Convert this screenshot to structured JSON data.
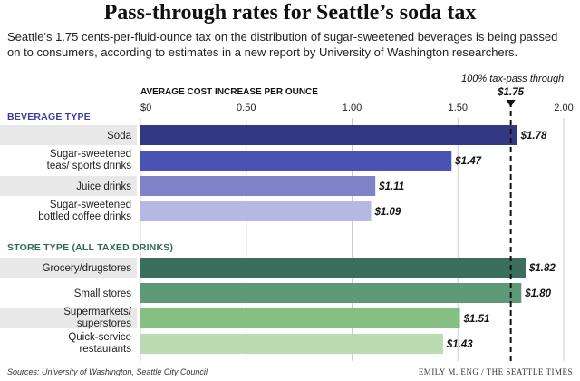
{
  "title": "Pass-through rates for Seattle’s soda tax",
  "subtitle": "Seattle's 1.75 cents-per-fluid-ounce tax on the distribution of sugar-sweetened beverages is being passed on to consumers, according to estimates in a new report by University of Washington researchers.",
  "sources": "Sources: University of Washington, Seattle City Council",
  "byline": "EMILY M. ENG / THE SEATTLE TIMES",
  "chart_data": {
    "type": "bar",
    "orientation": "horizontal",
    "axis_title": "AVERAGE COST INCREASE PER OUNCE",
    "xlim": [
      0,
      2.0
    ],
    "ticks": [
      {
        "value": 0,
        "label": "$0"
      },
      {
        "value": 0.5,
        "label": "0.50"
      },
      {
        "value": 1.0,
        "label": "1.00"
      },
      {
        "value": 1.5,
        "label": "1.50"
      },
      {
        "value": 2.0,
        "label": "2.00"
      }
    ],
    "reference_line": {
      "value": 1.75,
      "label": "100% tax-pass through",
      "value_label": "$1.75"
    },
    "groups": [
      {
        "heading": "BEVERAGE TYPE",
        "heading_color": "#3a3f9a",
        "bars": [
          {
            "label": "Soda",
            "value": 1.78,
            "value_label": "$1.78",
            "color": "#323982"
          },
          {
            "label": "Sugar-sweetened teas/ sports drinks",
            "lines": [
              "Sugar-sweetened",
              "teas/ sports drinks"
            ],
            "value": 1.47,
            "value_label": "$1.47",
            "color": "#4a52b3"
          },
          {
            "label": "Juice drinks",
            "value": 1.11,
            "value_label": "$1.11",
            "color": "#7d83c6"
          },
          {
            "label": "Sugar-sweetened bottled coffee drinks",
            "lines": [
              "Sugar-sweetened",
              "bottled coffee drinks"
            ],
            "value": 1.09,
            "value_label": "$1.09",
            "color": "#b6b8e1"
          }
        ]
      },
      {
        "heading": "STORE TYPE (ALL TAXED DRINKS)",
        "heading_color": "#2f6b55",
        "bars": [
          {
            "label": "Grocery/drugstores",
            "value": 1.82,
            "value_label": "$1.82",
            "color": "#3a6e5d"
          },
          {
            "label": "Small stores",
            "value": 1.8,
            "value_label": "$1.80",
            "color": "#5f9a78"
          },
          {
            "label": "Supermarkets/ superstores",
            "lines": [
              "Supermarkets/",
              "superstores"
            ],
            "value": 1.51,
            "value_label": "$1.51",
            "color": "#86bf82"
          },
          {
            "label": "Quick-service restaurants",
            "lines": [
              "Quick-service",
              "restaurants"
            ],
            "value": 1.43,
            "value_label": "$1.43",
            "color": "#b9dcb2"
          }
        ]
      }
    ]
  }
}
